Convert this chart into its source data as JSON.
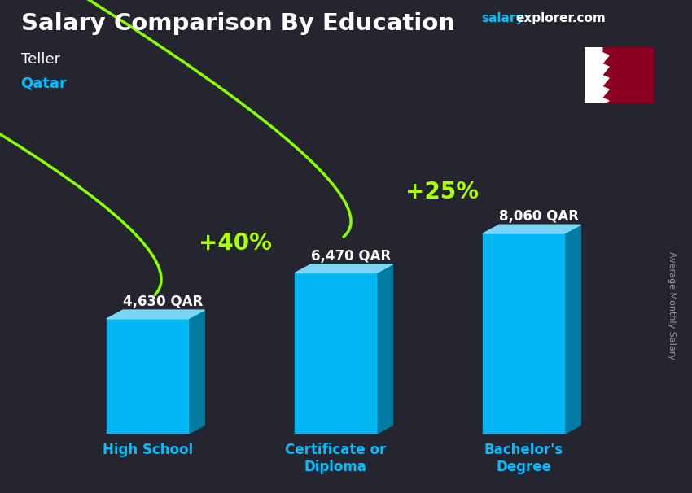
{
  "title": "Salary Comparison By Education",
  "subtitle_job": "Teller",
  "subtitle_location": "Qatar",
  "watermark_salary": "salary",
  "watermark_explorer": "explorer.com",
  "ylabel": "Average Monthly Salary",
  "categories": [
    "High School",
    "Certificate or\nDiploma",
    "Bachelor's\nDegree"
  ],
  "values": [
    4630,
    6470,
    8060
  ],
  "value_labels": [
    "4,630 QAR",
    "6,470 QAR",
    "8,060 QAR"
  ],
  "pct_labels": [
    "+40%",
    "+25%"
  ],
  "bar_face_color": "#00BFFF",
  "bar_side_color": "#0080AA",
  "bar_top_color": "#80DFFF",
  "arrow_color": "#88FF00",
  "title_color": "#FFFFFF",
  "subtitle_job_color": "#FFFFFF",
  "subtitle_location_color": "#00BFFF",
  "watermark_salary_color": "#00BFFF",
  "watermark_explorer_color": "#FFFFFF",
  "value_label_color": "#FFFFFF",
  "pct_label_color": "#AAFF00",
  "bg_color": "#252530",
  "xtick_color": "#00BFFF",
  "ylabel_color": "#999999",
  "ylim_max": 11500,
  "figsize": [
    8.5,
    6.06
  ],
  "dpi": 100
}
